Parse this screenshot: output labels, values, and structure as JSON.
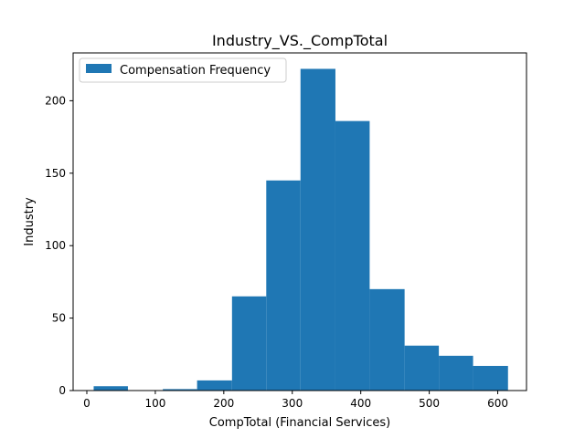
{
  "chart_data": {
    "type": "bar",
    "title": "Industry_VS._CompTotal",
    "xlabel": "CompTotal (Financial Services)",
    "ylabel": "Industry",
    "xlim": [
      -20,
      642
    ],
    "ylim": [
      0,
      233
    ],
    "x_ticks": [
      0,
      100,
      200,
      300,
      400,
      500,
      600
    ],
    "y_ticks": [
      0,
      50,
      100,
      150,
      200
    ],
    "grid": false,
    "legend_position": "top-left",
    "bar_color": "#1f77b4",
    "series": [
      {
        "name": "Compensation Frequency",
        "bins": [
          {
            "x0": 10,
            "x1": 60,
            "count": 3
          },
          {
            "x0": 60,
            "x1": 111,
            "count": 0
          },
          {
            "x0": 111,
            "x1": 161,
            "count": 1
          },
          {
            "x0": 161,
            "x1": 212,
            "count": 7
          },
          {
            "x0": 212,
            "x1": 262,
            "count": 65
          },
          {
            "x0": 262,
            "x1": 312,
            "count": 145
          },
          {
            "x0": 312,
            "x1": 363,
            "count": 222
          },
          {
            "x0": 363,
            "x1": 413,
            "count": 186
          },
          {
            "x0": 413,
            "x1": 464,
            "count": 70
          },
          {
            "x0": 464,
            "x1": 514,
            "count": 31
          },
          {
            "x0": 514,
            "x1": 564,
            "count": 24
          },
          {
            "x0": 564,
            "x1": 615,
            "count": 17
          }
        ]
      }
    ]
  }
}
